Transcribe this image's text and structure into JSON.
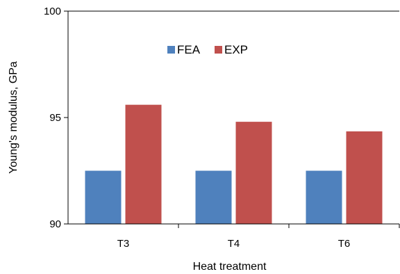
{
  "chart_data": {
    "type": "bar",
    "title": "",
    "xlabel": "Heat treatment",
    "ylabel": "Young's modulus, GPa",
    "categories": [
      "T3",
      "T4",
      "T6"
    ],
    "series": [
      {
        "name": "FEA",
        "color": "#4f81bd",
        "values": [
          92.5,
          92.5,
          92.5
        ]
      },
      {
        "name": "EXP",
        "color": "#c0504d",
        "values": [
          95.6,
          94.8,
          94.35
        ]
      }
    ],
    "ylim": [
      90,
      100
    ],
    "yticks": [
      90,
      95,
      100
    ],
    "grid": false,
    "legend": {
      "placement": "top-center",
      "orientation": "horizontal"
    }
  }
}
